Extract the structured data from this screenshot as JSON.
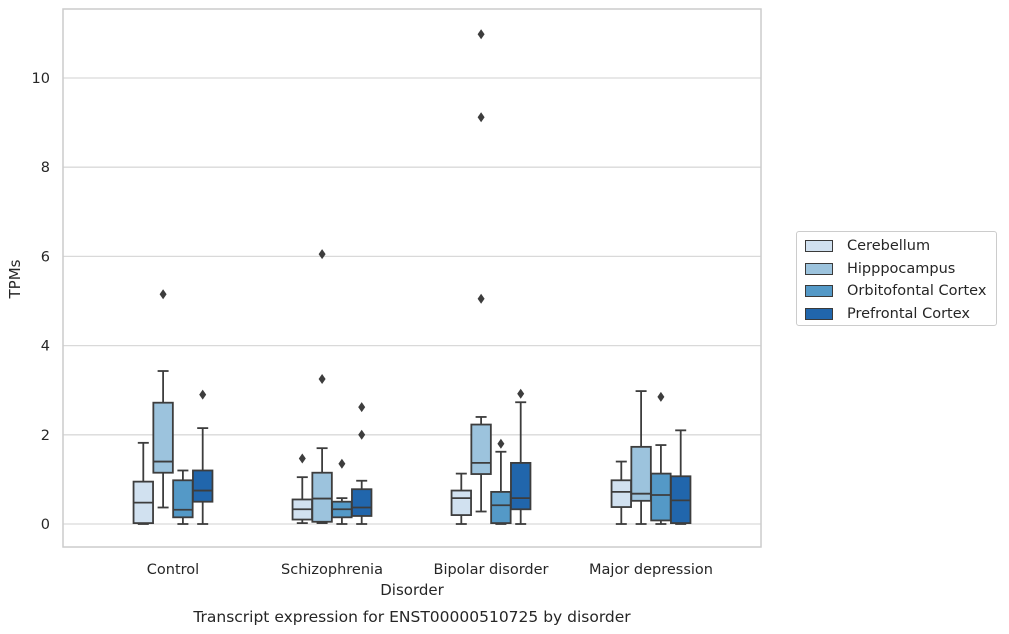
{
  "chart_data": {
    "type": "box",
    "title": "",
    "caption": "Transcript expression for ENST00000510725 by disorder",
    "xlabel": "Disorder",
    "ylabel": "TPMs",
    "ylim": [
      -0.5,
      11.5
    ],
    "yticks": [
      0,
      2,
      4,
      6,
      8,
      10
    ],
    "grid": true,
    "legend_position": "right",
    "categories": [
      "Control",
      "Schizophrenia",
      "Bipolar disorder",
      "Major depression"
    ],
    "series": [
      {
        "name": "Cerebellum",
        "color": "#d1e1f0",
        "boxes": [
          {
            "whislo": 0.0,
            "q1": 0.02,
            "med": 0.48,
            "q3": 0.95,
            "whishi": 1.82,
            "fliers": []
          },
          {
            "whislo": 0.02,
            "q1": 0.1,
            "med": 0.33,
            "q3": 0.55,
            "whishi": 1.05,
            "fliers": [
              1.47
            ]
          },
          {
            "whislo": 0.0,
            "q1": 0.2,
            "med": 0.58,
            "q3": 0.75,
            "whishi": 1.13,
            "fliers": []
          },
          {
            "whislo": 0.0,
            "q1": 0.38,
            "med": 0.72,
            "q3": 0.98,
            "whishi": 1.4,
            "fliers": []
          }
        ]
      },
      {
        "name": "Hipppocampus",
        "color": "#9cc3dd",
        "boxes": [
          {
            "whislo": 0.37,
            "q1": 1.15,
            "med": 1.4,
            "q3": 2.72,
            "whishi": 3.43,
            "fliers": [
              5.15
            ]
          },
          {
            "whislo": 0.02,
            "q1": 0.05,
            "med": 0.57,
            "q3": 1.15,
            "whishi": 1.7,
            "fliers": [
              3.25,
              6.05
            ]
          },
          {
            "whislo": 0.28,
            "q1": 1.12,
            "med": 1.37,
            "q3": 2.23,
            "whishi": 2.4,
            "fliers": [
              5.05,
              9.12,
              10.98
            ]
          },
          {
            "whislo": 0.0,
            "q1": 0.52,
            "med": 0.68,
            "q3": 1.73,
            "whishi": 2.98,
            "fliers": []
          }
        ]
      },
      {
        "name": "Orbitofontal Cortex",
        "color": "#5499c7",
        "boxes": [
          {
            "whislo": 0.0,
            "q1": 0.15,
            "med": 0.32,
            "q3": 0.98,
            "whishi": 1.2,
            "fliers": []
          },
          {
            "whislo": 0.0,
            "q1": 0.15,
            "med": 0.33,
            "q3": 0.5,
            "whishi": 0.58,
            "fliers": [
              1.35
            ]
          },
          {
            "whislo": 0.0,
            "q1": 0.02,
            "med": 0.42,
            "q3": 0.72,
            "whishi": 1.62,
            "fliers": [
              1.8
            ]
          },
          {
            "whislo": 0.0,
            "q1": 0.08,
            "med": 0.65,
            "q3": 1.13,
            "whishi": 1.77,
            "fliers": [
              2.85
            ]
          }
        ]
      },
      {
        "name": "Prefrontal Cortex",
        "color": "#2166ac",
        "boxes": [
          {
            "whislo": 0.0,
            "q1": 0.5,
            "med": 0.75,
            "q3": 1.2,
            "whishi": 2.15,
            "fliers": [
              2.9
            ]
          },
          {
            "whislo": 0.0,
            "q1": 0.18,
            "med": 0.37,
            "q3": 0.78,
            "whishi": 0.97,
            "fliers": [
              2.0,
              2.62
            ]
          },
          {
            "whislo": 0.0,
            "q1": 0.33,
            "med": 0.58,
            "q3": 1.37,
            "whishi": 2.73,
            "fliers": [
              2.92
            ]
          },
          {
            "whislo": 0.0,
            "q1": 0.02,
            "med": 0.53,
            "q3": 1.07,
            "whishi": 2.1,
            "fliers": []
          }
        ]
      }
    ]
  }
}
